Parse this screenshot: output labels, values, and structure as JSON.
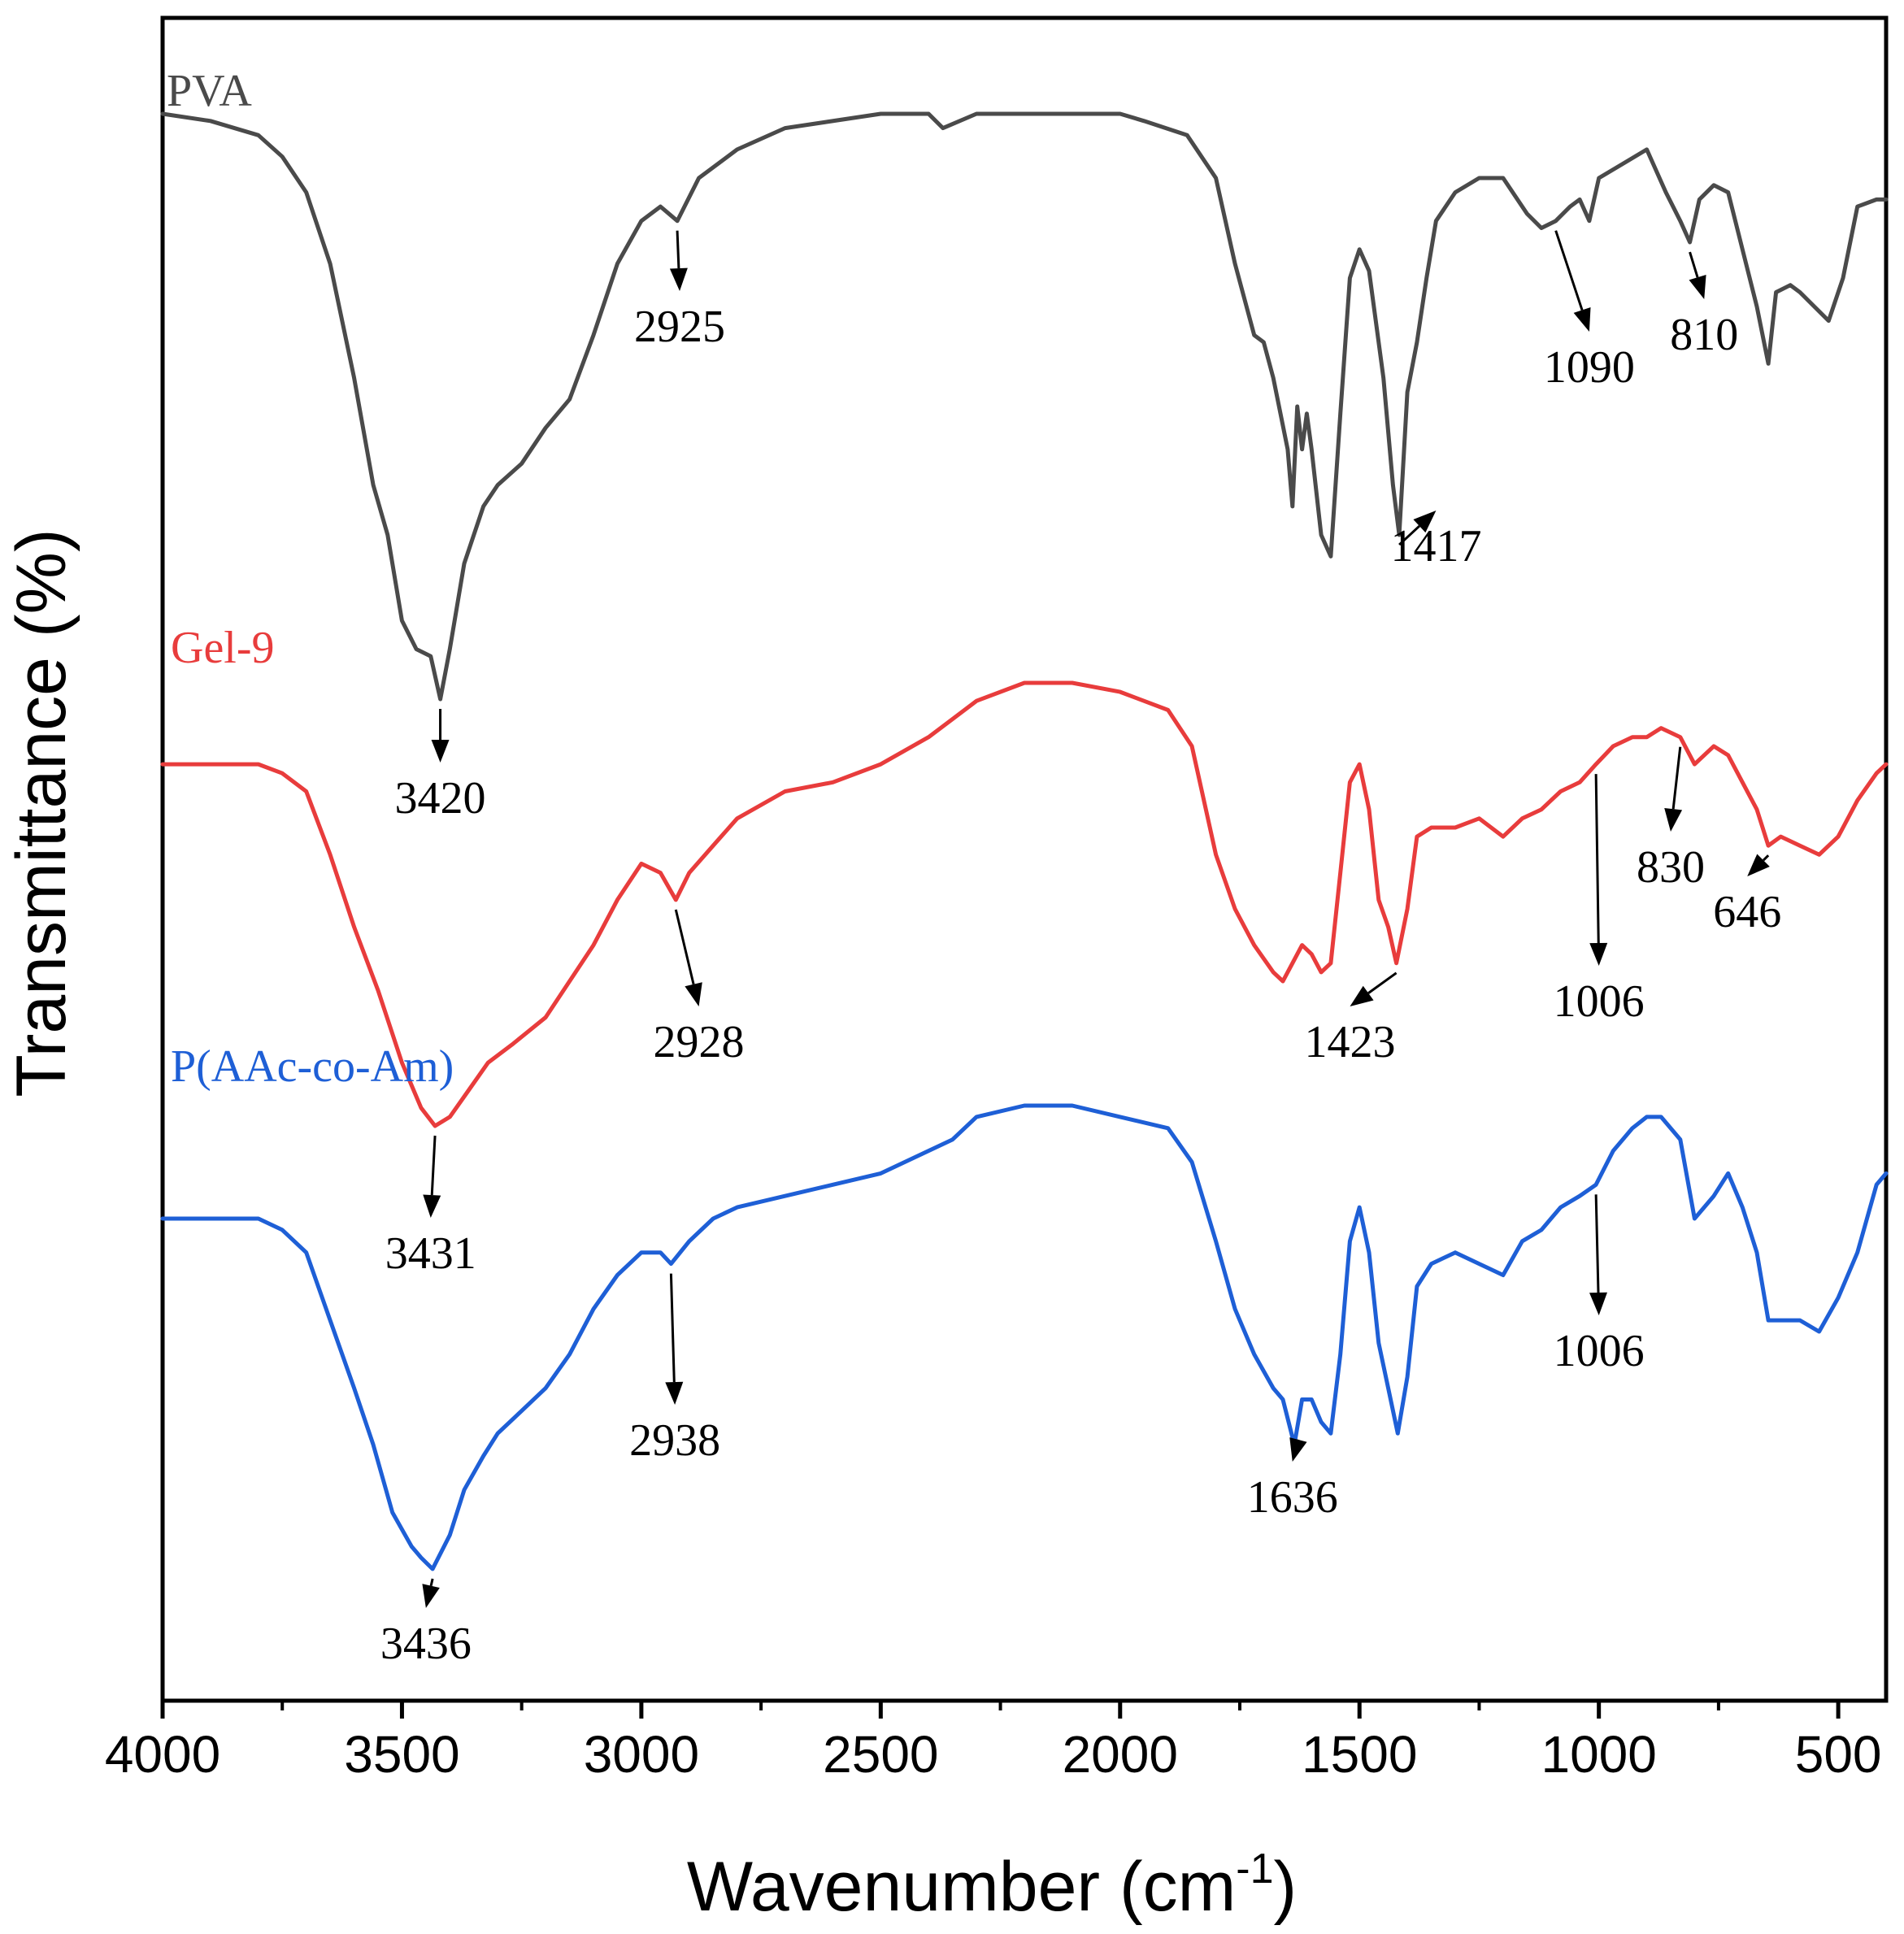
{
  "chart_data": {
    "type": "line",
    "title": "",
    "xlabel": "Wavenumber (cm",
    "xlabel_sup": "-1",
    "xlabel_end": ")",
    "ylabel": "Transmittance (%)",
    "xlim": [
      4000,
      400
    ],
    "x_ticks": [
      4000,
      3500,
      3000,
      2500,
      2000,
      1500,
      1000,
      500
    ],
    "x_tick_labels": [
      "4000",
      "3500",
      "3000",
      "2500",
      "2000",
      "1500",
      "1000",
      "500"
    ],
    "y_ticks_shown": false,
    "grid": false,
    "series": [
      {
        "name": "PVA",
        "color": "#4a4a4a",
        "points": [
          [
            4000,
            97
          ],
          [
            3900,
            96
          ],
          [
            3800,
            94
          ],
          [
            3750,
            91
          ],
          [
            3700,
            86
          ],
          [
            3650,
            76
          ],
          [
            3600,
            60
          ],
          [
            3560,
            45
          ],
          [
            3530,
            38
          ],
          [
            3500,
            26
          ],
          [
            3470,
            22
          ],
          [
            3440,
            21
          ],
          [
            3420,
            15
          ],
          [
            3400,
            22
          ],
          [
            3370,
            34
          ],
          [
            3330,
            42
          ],
          [
            3300,
            45
          ],
          [
            3250,
            48
          ],
          [
            3200,
            53
          ],
          [
            3150,
            57
          ],
          [
            3100,
            66
          ],
          [
            3050,
            76
          ],
          [
            3000,
            82
          ],
          [
            2960,
            84
          ],
          [
            2925,
            82
          ],
          [
            2880,
            88
          ],
          [
            2800,
            92
          ],
          [
            2700,
            95
          ],
          [
            2500,
            97
          ],
          [
            2400,
            97
          ],
          [
            2370,
            95
          ],
          [
            2300,
            97
          ],
          [
            2100,
            97
          ],
          [
            2000,
            97
          ],
          [
            1950,
            96
          ],
          [
            1860,
            94
          ],
          [
            1800,
            88
          ],
          [
            1760,
            76
          ],
          [
            1720,
            66
          ],
          [
            1700,
            65
          ],
          [
            1680,
            60
          ],
          [
            1650,
            50
          ],
          [
            1640,
            42
          ],
          [
            1630,
            56
          ],
          [
            1620,
            50
          ],
          [
            1610,
            55
          ],
          [
            1600,
            50
          ],
          [
            1580,
            38
          ],
          [
            1560,
            35
          ],
          [
            1540,
            55
          ],
          [
            1520,
            74
          ],
          [
            1500,
            78
          ],
          [
            1480,
            75
          ],
          [
            1450,
            60
          ],
          [
            1430,
            45
          ],
          [
            1417,
            38
          ],
          [
            1400,
            58
          ],
          [
            1380,
            65
          ],
          [
            1360,
            74
          ],
          [
            1340,
            82
          ],
          [
            1300,
            86
          ],
          [
            1250,
            88
          ],
          [
            1200,
            88
          ],
          [
            1150,
            83
          ],
          [
            1120,
            81
          ],
          [
            1090,
            82
          ],
          [
            1060,
            84
          ],
          [
            1040,
            85
          ],
          [
            1020,
            82
          ],
          [
            1000,
            88
          ],
          [
            950,
            90
          ],
          [
            900,
            92
          ],
          [
            860,
            86
          ],
          [
            830,
            82
          ],
          [
            810,
            79
          ],
          [
            790,
            85
          ],
          [
            760,
            87
          ],
          [
            730,
            86
          ],
          [
            700,
            78
          ],
          [
            670,
            70
          ],
          [
            646,
            62
          ],
          [
            630,
            72
          ],
          [
            600,
            73
          ],
          [
            580,
            72
          ],
          [
            550,
            70
          ],
          [
            520,
            68
          ],
          [
            490,
            74
          ],
          [
            460,
            84
          ],
          [
            420,
            85
          ],
          [
            400,
            85
          ]
        ]
      },
      {
        "name": "Gel-9",
        "color": "#e83c3c",
        "points": [
          [
            4000,
            60
          ],
          [
            3900,
            60
          ],
          [
            3800,
            60
          ],
          [
            3750,
            59
          ],
          [
            3700,
            57
          ],
          [
            3650,
            50
          ],
          [
            3600,
            42
          ],
          [
            3550,
            35
          ],
          [
            3500,
            27
          ],
          [
            3460,
            22
          ],
          [
            3431,
            20
          ],
          [
            3400,
            21
          ],
          [
            3360,
            24
          ],
          [
            3320,
            27
          ],
          [
            3270,
            29
          ],
          [
            3200,
            32
          ],
          [
            3150,
            36
          ],
          [
            3100,
            40
          ],
          [
            3050,
            45
          ],
          [
            3000,
            49
          ],
          [
            2960,
            48
          ],
          [
            2928,
            45
          ],
          [
            2900,
            48
          ],
          [
            2850,
            51
          ],
          [
            2800,
            54
          ],
          [
            2700,
            57
          ],
          [
            2600,
            58
          ],
          [
            2500,
            60
          ],
          [
            2400,
            63
          ],
          [
            2350,
            65
          ],
          [
            2300,
            67
          ],
          [
            2200,
            69
          ],
          [
            2100,
            69
          ],
          [
            2000,
            68
          ],
          [
            1900,
            66
          ],
          [
            1850,
            62
          ],
          [
            1800,
            50
          ],
          [
            1760,
            44
          ],
          [
            1720,
            40
          ],
          [
            1680,
            37
          ],
          [
            1660,
            36
          ],
          [
            1640,
            38
          ],
          [
            1620,
            40
          ],
          [
            1600,
            39
          ],
          [
            1580,
            37
          ],
          [
            1560,
            38
          ],
          [
            1540,
            48
          ],
          [
            1520,
            58
          ],
          [
            1500,
            60
          ],
          [
            1480,
            55
          ],
          [
            1460,
            45
          ],
          [
            1440,
            42
          ],
          [
            1423,
            38
          ],
          [
            1400,
            44
          ],
          [
            1380,
            52
          ],
          [
            1350,
            53
          ],
          [
            1300,
            53
          ],
          [
            1250,
            54
          ],
          [
            1200,
            52
          ],
          [
            1160,
            54
          ],
          [
            1120,
            55
          ],
          [
            1080,
            57
          ],
          [
            1040,
            58
          ],
          [
            1006,
            60
          ],
          [
            970,
            62
          ],
          [
            930,
            63
          ],
          [
            900,
            63
          ],
          [
            870,
            64
          ],
          [
            830,
            63
          ],
          [
            800,
            60
          ],
          [
            760,
            62
          ],
          [
            730,
            61
          ],
          [
            700,
            58
          ],
          [
            670,
            55
          ],
          [
            646,
            51
          ],
          [
            620,
            52
          ],
          [
            580,
            51
          ],
          [
            540,
            50
          ],
          [
            500,
            52
          ],
          [
            460,
            56
          ],
          [
            420,
            59
          ],
          [
            400,
            60
          ]
        ]
      },
      {
        "name": "P(AAc-co-Am)",
        "color": "#1e5fd6",
        "points": [
          [
            4000,
            26
          ],
          [
            3900,
            26
          ],
          [
            3800,
            26
          ],
          [
            3750,
            25
          ],
          [
            3700,
            23
          ],
          [
            3650,
            17
          ],
          [
            3600,
            11
          ],
          [
            3560,
            6
          ],
          [
            3520,
            0
          ],
          [
            3480,
            -3
          ],
          [
            3460,
            -4
          ],
          [
            3436,
            -5
          ],
          [
            3400,
            -2
          ],
          [
            3370,
            2
          ],
          [
            3330,
            5
          ],
          [
            3300,
            7
          ],
          [
            3250,
            9
          ],
          [
            3200,
            11
          ],
          [
            3150,
            14
          ],
          [
            3100,
            18
          ],
          [
            3050,
            21
          ],
          [
            3000,
            23
          ],
          [
            2960,
            23
          ],
          [
            2938,
            22
          ],
          [
            2900,
            24
          ],
          [
            2850,
            26
          ],
          [
            2800,
            27
          ],
          [
            2700,
            28
          ],
          [
            2600,
            29
          ],
          [
            2500,
            30
          ],
          [
            2400,
            32
          ],
          [
            2350,
            33
          ],
          [
            2300,
            35
          ],
          [
            2200,
            36
          ],
          [
            2100,
            36
          ],
          [
            2000,
            35
          ],
          [
            1900,
            34
          ],
          [
            1850,
            31
          ],
          [
            1800,
            24
          ],
          [
            1760,
            18
          ],
          [
            1720,
            14
          ],
          [
            1680,
            11
          ],
          [
            1660,
            10
          ],
          [
            1636,
            6
          ],
          [
            1620,
            10
          ],
          [
            1600,
            10
          ],
          [
            1580,
            8
          ],
          [
            1560,
            7
          ],
          [
            1540,
            14
          ],
          [
            1520,
            24
          ],
          [
            1500,
            27
          ],
          [
            1480,
            23
          ],
          [
            1460,
            15
          ],
          [
            1440,
            11
          ],
          [
            1420,
            7
          ],
          [
            1400,
            12
          ],
          [
            1380,
            20
          ],
          [
            1350,
            22
          ],
          [
            1300,
            23
          ],
          [
            1250,
            22
          ],
          [
            1200,
            21
          ],
          [
            1160,
            24
          ],
          [
            1120,
            25
          ],
          [
            1080,
            27
          ],
          [
            1040,
            28
          ],
          [
            1006,
            29
          ],
          [
            970,
            32
          ],
          [
            930,
            34
          ],
          [
            900,
            35
          ],
          [
            870,
            35
          ],
          [
            830,
            33
          ],
          [
            800,
            26
          ],
          [
            760,
            28
          ],
          [
            730,
            30
          ],
          [
            700,
            27
          ],
          [
            670,
            23
          ],
          [
            646,
            17
          ],
          [
            620,
            17
          ],
          [
            580,
            17
          ],
          [
            540,
            16
          ],
          [
            500,
            19
          ],
          [
            460,
            23
          ],
          [
            420,
            29
          ],
          [
            400,
            30
          ]
        ]
      }
    ],
    "annotations": [
      {
        "text": "3420",
        "series": "PVA",
        "x": 3420
      },
      {
        "text": "2925",
        "series": "PVA",
        "x": 2925
      },
      {
        "text": "1417",
        "series": "PVA",
        "x": 1417
      },
      {
        "text": "1090",
        "series": "PVA",
        "x": 1090
      },
      {
        "text": "810",
        "series": "PVA",
        "x": 810
      },
      {
        "text": "3431",
        "series": "Gel-9",
        "x": 3431
      },
      {
        "text": "2928",
        "series": "Gel-9",
        "x": 2928
      },
      {
        "text": "1423",
        "series": "Gel-9",
        "x": 1423
      },
      {
        "text": "1006",
        "series": "Gel-9",
        "x": 1006
      },
      {
        "text": "830",
        "series": "Gel-9",
        "x": 830
      },
      {
        "text": "646",
        "series": "Gel-9",
        "x": 646
      },
      {
        "text": "3436",
        "series": "P(AAc-co-Am)",
        "x": 3436
      },
      {
        "text": "2938",
        "series": "P(AAc-co-Am)",
        "x": 2938
      },
      {
        "text": "1636",
        "series": "P(AAc-co-Am)",
        "x": 1636
      },
      {
        "text": "1006",
        "series": "P(AAc-co-Am)",
        "x": 1006
      }
    ]
  }
}
